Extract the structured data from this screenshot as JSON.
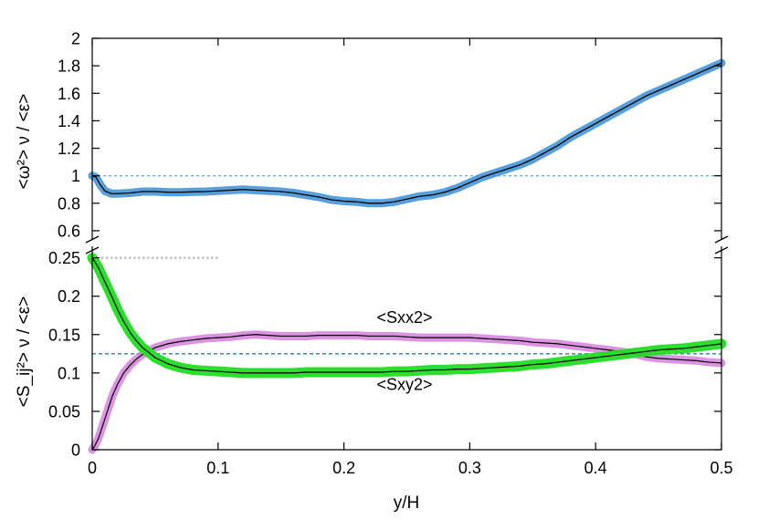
{
  "chart_data": [
    {
      "type": "line",
      "ylabel": "<ω²> ν / <ε>",
      "xlim": [
        0,
        0.5
      ],
      "ylim": [
        0.5,
        2.0
      ],
      "yticks": [
        "0.6",
        "0.8",
        "1",
        "1.2",
        "1.4",
        "1.6",
        "1.8",
        "2"
      ],
      "grid": false,
      "reference_lines": [
        {
          "y": 1.0,
          "style": "dotted",
          "color": "#56b4e9"
        }
      ],
      "series": [
        {
          "color": "#3a8fd8",
          "band": true,
          "x": [
            0.0,
            0.003,
            0.006,
            0.01,
            0.015,
            0.02,
            0.03,
            0.04,
            0.05,
            0.06,
            0.07,
            0.08,
            0.09,
            0.1,
            0.11,
            0.12,
            0.13,
            0.14,
            0.15,
            0.16,
            0.17,
            0.18,
            0.19,
            0.2,
            0.21,
            0.22,
            0.23,
            0.24,
            0.25,
            0.26,
            0.27,
            0.28,
            0.29,
            0.3,
            0.31,
            0.32,
            0.33,
            0.34,
            0.35,
            0.36,
            0.37,
            0.38,
            0.39,
            0.4,
            0.41,
            0.42,
            0.43,
            0.44,
            0.45,
            0.46,
            0.47,
            0.48,
            0.49,
            0.5
          ],
          "y": [
            1.0,
            0.99,
            0.94,
            0.89,
            0.87,
            0.87,
            0.875,
            0.885,
            0.885,
            0.88,
            0.88,
            0.883,
            0.885,
            0.89,
            0.895,
            0.9,
            0.895,
            0.89,
            0.885,
            0.875,
            0.86,
            0.845,
            0.825,
            0.815,
            0.81,
            0.8,
            0.8,
            0.81,
            0.83,
            0.85,
            0.86,
            0.88,
            0.91,
            0.95,
            0.99,
            1.02,
            1.05,
            1.08,
            1.12,
            1.17,
            1.22,
            1.28,
            1.33,
            1.38,
            1.43,
            1.48,
            1.53,
            1.58,
            1.62,
            1.66,
            1.7,
            1.74,
            1.78,
            1.82
          ]
        }
      ]
    },
    {
      "type": "line",
      "xlabel": "y/H",
      "ylabel": "<S_ij²> ν / <ε>",
      "xlim": [
        0,
        0.5
      ],
      "ylim": [
        0,
        0.265
      ],
      "xticks": [
        "0",
        "0.1",
        "0.2",
        "0.3",
        "0.4",
        "0.5"
      ],
      "yticks": [
        "0",
        "0.05",
        "0.1",
        "0.15",
        "0.2",
        "0.25"
      ],
      "grid": false,
      "reference_lines": [
        {
          "y": 0.125,
          "style": "dashed",
          "color": "#2f7fa8"
        },
        {
          "y": 0.25,
          "x_end": 0.1,
          "style": "dotted",
          "color": "#bbbbbb"
        }
      ],
      "annotations": [
        {
          "text": "<Sxx2>",
          "x": 0.225,
          "y": 0.165
        },
        {
          "text": "<Sxy2>",
          "x": 0.225,
          "y": 0.078
        }
      ],
      "series": [
        {
          "name": "<Sxx2>",
          "color": "#d070d8",
          "band": true,
          "x": [
            0.0,
            0.002,
            0.005,
            0.008,
            0.012,
            0.016,
            0.02,
            0.025,
            0.03,
            0.035,
            0.04,
            0.05,
            0.06,
            0.07,
            0.08,
            0.09,
            0.1,
            0.11,
            0.12,
            0.13,
            0.14,
            0.15,
            0.16,
            0.17,
            0.18,
            0.19,
            0.2,
            0.21,
            0.22,
            0.23,
            0.24,
            0.25,
            0.26,
            0.27,
            0.28,
            0.29,
            0.3,
            0.31,
            0.32,
            0.33,
            0.34,
            0.35,
            0.36,
            0.37,
            0.38,
            0.39,
            0.4,
            0.41,
            0.42,
            0.43,
            0.44,
            0.45,
            0.46,
            0.47,
            0.48,
            0.49,
            0.5
          ],
          "y": [
            0.0,
            0.005,
            0.015,
            0.03,
            0.05,
            0.07,
            0.085,
            0.1,
            0.11,
            0.118,
            0.124,
            0.133,
            0.138,
            0.141,
            0.143,
            0.145,
            0.146,
            0.147,
            0.149,
            0.15,
            0.149,
            0.148,
            0.148,
            0.148,
            0.149,
            0.149,
            0.149,
            0.149,
            0.148,
            0.148,
            0.148,
            0.147,
            0.146,
            0.146,
            0.146,
            0.146,
            0.146,
            0.145,
            0.144,
            0.143,
            0.142,
            0.14,
            0.139,
            0.138,
            0.136,
            0.134,
            0.132,
            0.13,
            0.128,
            0.125,
            0.121,
            0.119,
            0.118,
            0.117,
            0.116,
            0.114,
            0.113
          ]
        },
        {
          "name": "<Sxy2>",
          "color": "#22dd22",
          "band": true,
          "x": [
            0.0,
            0.002,
            0.005,
            0.008,
            0.012,
            0.016,
            0.02,
            0.025,
            0.03,
            0.035,
            0.04,
            0.05,
            0.06,
            0.07,
            0.08,
            0.09,
            0.1,
            0.11,
            0.12,
            0.13,
            0.14,
            0.15,
            0.16,
            0.17,
            0.18,
            0.19,
            0.2,
            0.21,
            0.22,
            0.23,
            0.24,
            0.25,
            0.26,
            0.27,
            0.28,
            0.29,
            0.3,
            0.31,
            0.32,
            0.33,
            0.34,
            0.35,
            0.36,
            0.37,
            0.38,
            0.39,
            0.4,
            0.41,
            0.42,
            0.43,
            0.44,
            0.45,
            0.46,
            0.47,
            0.48,
            0.49,
            0.5
          ],
          "y": [
            0.25,
            0.245,
            0.237,
            0.226,
            0.212,
            0.198,
            0.183,
            0.167,
            0.153,
            0.142,
            0.133,
            0.12,
            0.112,
            0.107,
            0.104,
            0.103,
            0.102,
            0.101,
            0.1,
            0.1,
            0.1,
            0.1,
            0.1,
            0.101,
            0.101,
            0.101,
            0.101,
            0.101,
            0.101,
            0.101,
            0.102,
            0.102,
            0.103,
            0.104,
            0.104,
            0.105,
            0.105,
            0.106,
            0.107,
            0.108,
            0.109,
            0.111,
            0.112,
            0.114,
            0.116,
            0.118,
            0.12,
            0.122,
            0.124,
            0.126,
            0.128,
            0.13,
            0.131,
            0.132,
            0.134,
            0.136,
            0.138
          ]
        }
      ]
    }
  ]
}
